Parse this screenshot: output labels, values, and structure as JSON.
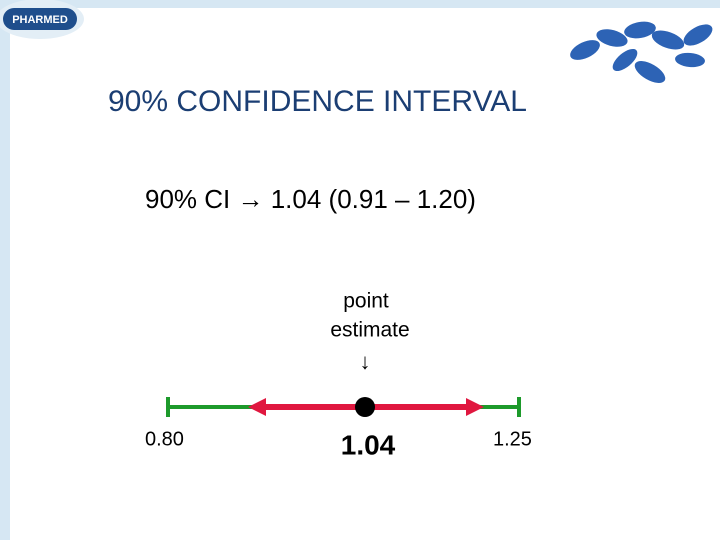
{
  "header": {
    "logo": "PHARMED",
    "title": "90% CONFIDENCE INTERVAL"
  },
  "summary": "90% CI → 1.04 (0.91 – 1.20)",
  "diagram": {
    "pointer_label_1": "point",
    "pointer_label_2": "estimate",
    "pointer_arrow": "↓",
    "lower_limit": "0.80",
    "point_estimate": "1.04",
    "upper_limit": "1.25"
  }
}
